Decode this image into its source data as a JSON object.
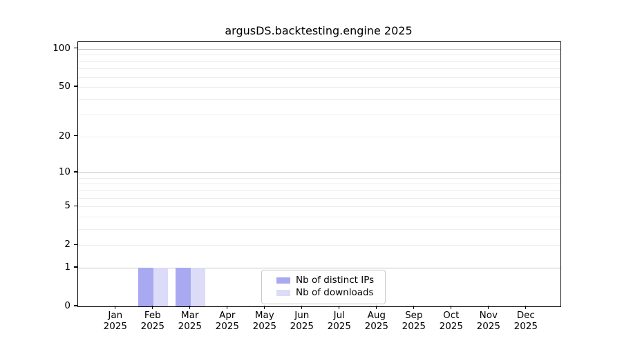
{
  "title": "argusDS.backtesting.engine 2025",
  "chart_data": {
    "type": "bar",
    "title": "argusDS.backtesting.engine 2025",
    "categories": [
      "Jan",
      "Feb",
      "Mar",
      "Apr",
      "May",
      "Jun",
      "Jul",
      "Aug",
      "Sep",
      "Oct",
      "Nov",
      "Dec"
    ],
    "year_label": "2025",
    "series": [
      {
        "name": "Nb of distinct IPs",
        "color": "#a9a9f2",
        "values": [
          0,
          1,
          1,
          0,
          0,
          0,
          0,
          0,
          0,
          0,
          0,
          0
        ]
      },
      {
        "name": "Nb of downloads",
        "color": "#dcdcf8",
        "values": [
          0,
          1,
          1,
          0,
          0,
          0,
          0,
          0,
          0,
          0,
          0,
          0
        ]
      }
    ],
    "yscale": "log1p",
    "ylim": [
      0,
      113
    ],
    "y_ticks": [
      0,
      1,
      2,
      5,
      10,
      20,
      50,
      100
    ],
    "y_major_gridlines": [
      1,
      10,
      100
    ],
    "y_minor_gridlines": [
      2,
      3,
      4,
      5,
      6,
      7,
      8,
      9,
      20,
      30,
      40,
      50,
      60,
      70,
      80,
      90
    ],
    "grid": true,
    "legend_position": "lower center",
    "colors": {
      "major_grid": "#c3c3c3",
      "minor_grid": "#ececec",
      "axis": "#000000",
      "legend_border": "#c9c9c9"
    }
  }
}
